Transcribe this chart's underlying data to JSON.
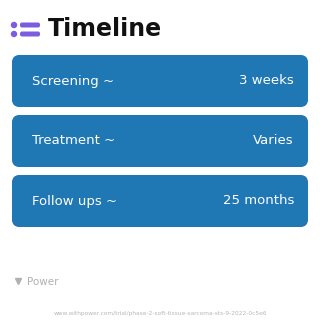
{
  "title": "Timeline",
  "background_color": "#ffffff",
  "rows": [
    {
      "label": "Screening ~",
      "value": "3 weeks",
      "color_left": "#3D8EF0",
      "color_right": "#5B9BFF"
    },
    {
      "label": "Treatment ~",
      "value": "Varies",
      "color_left": "#6B7FE0",
      "color_right": "#B07FCC"
    },
    {
      "label": "Follow ups ~",
      "value": "25 months",
      "color_left": "#9B6DC8",
      "color_right": "#C490D8"
    }
  ],
  "icon_color": "#7B5CE0",
  "title_fontsize": 17,
  "row_fontsize": 9.5,
  "footer_text": "www.withpower.com/trial/phase-2-soft-tissue-sarcoma-sts-9-2022-0c5e6",
  "footer_fontsize": 4.2,
  "power_text": "Power",
  "power_fontsize": 7.5,
  "fig_width": 3.2,
  "fig_height": 3.27,
  "dpi": 100
}
